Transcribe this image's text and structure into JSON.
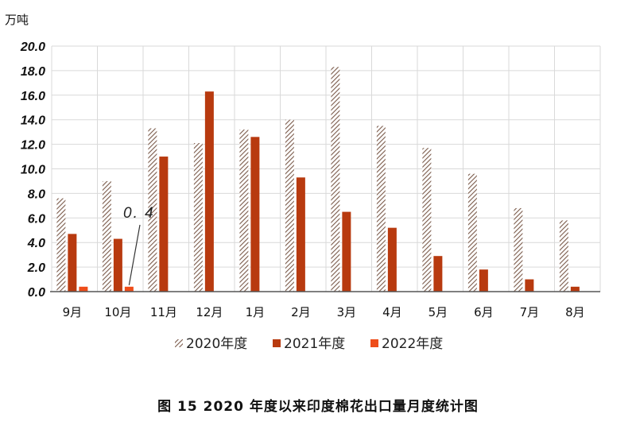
{
  "chart_data": {
    "type": "bar",
    "ylabel": "万吨",
    "ylim": [
      0,
      20
    ],
    "yticks": [
      "0.0",
      "2.0",
      "4.0",
      "6.0",
      "8.0",
      "10.0",
      "12.0",
      "14.0",
      "16.0",
      "18.0",
      "20.0"
    ],
    "categories": [
      "9月",
      "10月",
      "11月",
      "12月",
      "1月",
      "2月",
      "3月",
      "4月",
      "5月",
      "6月",
      "7月",
      "8月"
    ],
    "series": [
      {
        "name": "2020年度",
        "color": "#8a6a5a",
        "pattern": "diagonal-hatch",
        "values": [
          7.6,
          9.0,
          13.3,
          12.1,
          13.2,
          14.0,
          18.3,
          13.5,
          11.7,
          9.6,
          6.8,
          5.8
        ]
      },
      {
        "name": "2021年度",
        "color": "#b83a0f",
        "pattern": "solid",
        "values": [
          4.7,
          4.3,
          11.0,
          16.3,
          12.6,
          9.3,
          6.5,
          5.2,
          2.9,
          1.8,
          1.0,
          0.4
        ]
      },
      {
        "name": "2022年度",
        "color": "#ee4d1a",
        "pattern": "solid",
        "values": [
          0.4,
          0.4,
          null,
          null,
          null,
          null,
          null,
          null,
          null,
          null,
          null,
          null
        ]
      }
    ],
    "annotation": {
      "text": "0. 4"
    },
    "grid": true,
    "legend": "bottom",
    "title": "图 15   2020 年度以来印度棉花出口量月度统计图"
  }
}
